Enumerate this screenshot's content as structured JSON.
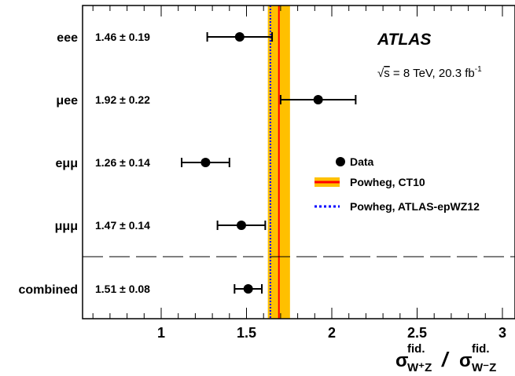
{
  "chart_data": {
    "type": "scatter",
    "orientation": "horizontal",
    "x_range": [
      0.55,
      3.08
    ],
    "x_ticks": [
      1,
      1.5,
      2,
      2.5,
      3
    ],
    "x_tick_labels": [
      "1",
      "1.5",
      "2",
      "2.5",
      "3"
    ],
    "xlabel_parts": {
      "sigma": "σ",
      "sup1": "fid.",
      "sub1": "W⁺Z",
      "slash": "/",
      "sup2": "fid.",
      "sub2": "W⁻Z"
    },
    "experiment": "ATLAS",
    "energy": {
      "sqrt": "√",
      "s": "s",
      "rest": " = 8 TeV, 20.3 fb",
      "sup": "-1"
    },
    "measurements": [
      {
        "label": "eee",
        "value": 1.46,
        "error": 0.19,
        "text": "1.46 ± 0.19"
      },
      {
        "label": "μee",
        "value": 1.92,
        "error": 0.22,
        "text": "1.92 ± 0.22"
      },
      {
        "label": "eμμ",
        "value": 1.26,
        "error": 0.14,
        "text": "1.26 ± 0.14"
      },
      {
        "label": "μμμ",
        "value": 1.47,
        "error": 0.14,
        "text": "1.47 ± 0.14"
      },
      {
        "label": "combined",
        "value": 1.51,
        "error": 0.08,
        "text": "1.51 ± 0.08"
      }
    ],
    "predictions": [
      {
        "name": "Powheg, CT10",
        "value": 1.69,
        "band": [
          1.625,
          1.755
        ],
        "line_color": "#ff0000",
        "band_color": "#ffc000"
      },
      {
        "name": "Powheg, ATLAS-epWZ12",
        "value": 1.64,
        "line_color": "#0000ff",
        "style": "dotted"
      }
    ],
    "legend": {
      "data": "Data",
      "ct10": "Powheg, CT10",
      "epwz": "Powheg, ATLAS-epWZ12",
      "placement": "right"
    },
    "separator": "dashed line between μμμ and combined"
  }
}
